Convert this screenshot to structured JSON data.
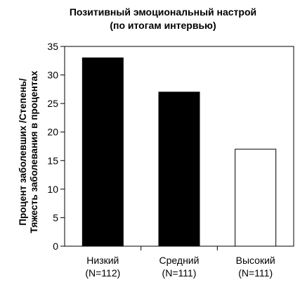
{
  "chart_data": {
    "type": "bar",
    "title": [
      "Позитивный эмоциональный настрой",
      "(по итогам интервью)"
    ],
    "ylabel": [
      "Процент заболевших /Степень/",
      "Тяжесть заболевания в процентах"
    ],
    "xlabel": "",
    "categories": [
      [
        "Низкий",
        "(N=112)"
      ],
      [
        "Средний",
        "(N=111)"
      ],
      [
        "Высокий",
        "(N=111)"
      ]
    ],
    "values": [
      33,
      27,
      17
    ],
    "bar_colors": [
      "#000000",
      "#000000",
      "#ffffff"
    ],
    "ylim": [
      0,
      35
    ],
    "yticks": [
      0,
      5,
      10,
      15,
      20,
      25,
      30,
      35
    ],
    "grid": false,
    "legend": "none"
  }
}
